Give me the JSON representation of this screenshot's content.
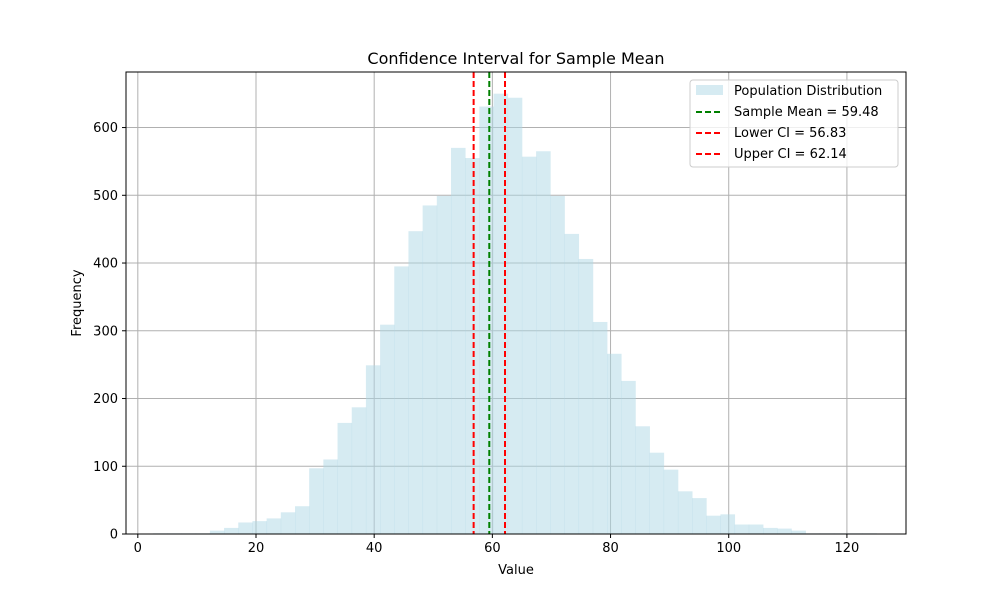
{
  "chart_data": {
    "type": "bar",
    "title": "Confidence Interval for Sample Mean",
    "xlabel": "Value",
    "ylabel": "Frequency",
    "xlim": [
      -2,
      130
    ],
    "ylim": [
      0,
      682
    ],
    "grid": true,
    "legend_position": "top-right",
    "x_ticks": [
      0,
      20,
      40,
      60,
      80,
      100,
      120
    ],
    "y_ticks": [
      0,
      100,
      200,
      300,
      400,
      500,
      600
    ],
    "bin_edges": [
      2.6,
      5.0,
      7.4,
      9.8,
      12.2,
      14.6,
      17.0,
      19.4,
      21.8,
      24.2,
      26.6,
      29.0,
      31.4,
      33.8,
      36.2,
      38.6,
      41.0,
      43.4,
      45.8,
      48.2,
      50.6,
      53.0,
      55.4,
      57.8,
      60.2,
      62.6,
      65.0,
      67.4,
      69.8,
      72.2,
      74.6,
      77.0,
      79.4,
      81.8,
      84.2,
      86.6,
      89.0,
      91.4,
      93.8,
      96.2,
      98.6,
      101.0,
      103.4,
      105.8,
      108.2,
      110.6,
      113.0,
      115.4,
      117.8,
      120.2,
      122.6,
      125.0
    ],
    "counts": [
      1,
      1,
      1,
      1,
      5,
      9,
      17,
      19,
      23,
      32,
      41,
      97,
      110,
      164,
      187,
      249,
      309,
      395,
      447,
      485,
      499,
      570,
      555,
      631,
      650,
      644,
      557,
      565,
      499,
      443,
      406,
      313,
      266,
      226,
      159,
      120,
      95,
      63,
      53,
      27,
      29,
      14,
      14,
      9,
      8,
      5,
      1,
      1,
      1,
      1,
      1
    ],
    "series": [
      {
        "name": "Population Distribution",
        "color": "#add8e6",
        "style": "bar"
      },
      {
        "name": "Sample Mean = 59.48",
        "value": 59.48,
        "color": "#008000",
        "style": "dashed-vline"
      },
      {
        "name": "Lower CI = 56.83",
        "value": 56.83,
        "color": "#ff0000",
        "style": "dashed-vline"
      },
      {
        "name": "Upper CI = 62.14",
        "value": 62.14,
        "color": "#ff0000",
        "style": "dashed-vline"
      }
    ]
  }
}
